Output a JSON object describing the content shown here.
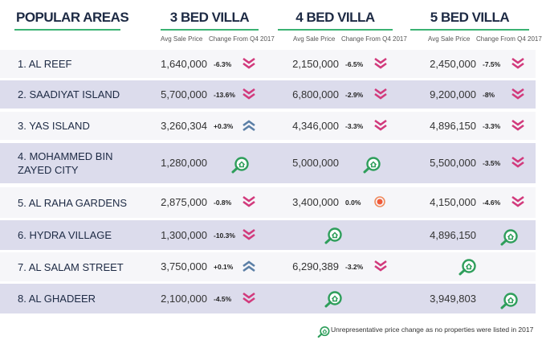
{
  "header": {
    "title": "POPULAR AREAS"
  },
  "columns": [
    {
      "title": "3 BED VILLA",
      "price_label": "Avg Sale Price",
      "change_label": "Change From Q4 2017"
    },
    {
      "title": "4 BED VILLA",
      "price_label": "Avg Sale Price",
      "change_label": "Change From Q4 2017"
    },
    {
      "title": "5 BED VILLA",
      "price_label": "Avg Sale Price",
      "change_label": "Change From Q4 2017"
    }
  ],
  "rows": [
    {
      "name": "1. AL REEF",
      "cells": [
        {
          "price": "1,640,000",
          "change": "-6.3%",
          "trend": "down"
        },
        {
          "price": "2,150,000",
          "change": "-6.5%",
          "trend": "down"
        },
        {
          "price": "2,450,000",
          "change": "-7.5%",
          "trend": "down"
        }
      ]
    },
    {
      "name": "2. SAADIYAT ISLAND",
      "cells": [
        {
          "price": "5,700,000",
          "change": "-13.6%",
          "trend": "down"
        },
        {
          "price": "6,800,000",
          "change": "-2.9%",
          "trend": "down"
        },
        {
          "price": "9,200,000",
          "change": "-8%",
          "trend": "down"
        }
      ]
    },
    {
      "name": "3. YAS ISLAND",
      "cells": [
        {
          "price": "3,260,304",
          "change": "+0.3%",
          "trend": "up"
        },
        {
          "price": "4,346,000",
          "change": "-3.3%",
          "trend": "down"
        },
        {
          "price": "4,896,150",
          "change": "-3.3%",
          "trend": "down"
        }
      ]
    },
    {
      "name": "4. MOHAMMED BIN ZAYED CITY",
      "cells": [
        {
          "price": "1,280,000",
          "trend": "none"
        },
        {
          "price": "5,000,000",
          "trend": "none"
        },
        {
          "price": "5,500,000",
          "change": "-3.5%",
          "trend": "down"
        }
      ]
    },
    {
      "name": "5. AL RAHA GARDENS",
      "cells": [
        {
          "price": "2,875,000",
          "change": "-0.8%",
          "trend": "down"
        },
        {
          "price": "3,400,000",
          "change": "0.0%",
          "trend": "flat"
        },
        {
          "price": "4,150,000",
          "change": "-4.6%",
          "trend": "down"
        }
      ]
    },
    {
      "name": "6. HYDRA VILLAGE",
      "cells": [
        {
          "price": "1,300,000",
          "change": "-10.3%",
          "trend": "down"
        },
        {
          "trend": "none"
        },
        {
          "price": "4,896,150",
          "trend": "none"
        }
      ]
    },
    {
      "name": "7. AL SALAM STREET",
      "cells": [
        {
          "price": "3,750,000",
          "change": "+0.1%",
          "trend": "up"
        },
        {
          "price": "6,290,389",
          "change": "-3.2%",
          "trend": "down"
        },
        {
          "trend": "none"
        }
      ]
    },
    {
      "name": "8. AL GHADEER",
      "cells": [
        {
          "price": "2,100,000",
          "change": "-4.5%",
          "trend": "down"
        },
        {
          "trend": "none"
        },
        {
          "price": "3,949,803",
          "trend": "none"
        }
      ]
    }
  ],
  "footnote": "Unrepresentative price change as no properties were listed in 2017"
}
